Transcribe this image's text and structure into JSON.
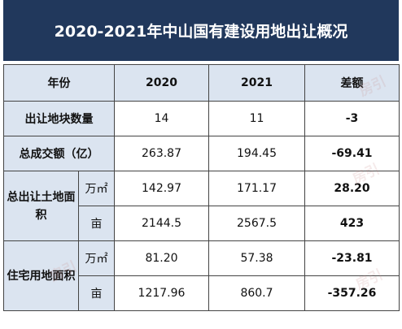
{
  "title": "2020-2021年中山国有建设用地出让概况",
  "header": {
    "label": "年份",
    "y2020": "2020",
    "y2021": "2021",
    "diff": "差额"
  },
  "rows": {
    "parcels": {
      "label": "出让地块数量",
      "v2020": "14",
      "v2021": "11",
      "diff": "-3"
    },
    "total": {
      "label": "总成交额（亿）",
      "v2020": "263.87",
      "v2021": "194.45",
      "diff": "-69.41"
    },
    "land_wan": {
      "group": "总出让土地面积",
      "unit": "万㎡",
      "v2020": "142.97",
      "v2021": "171.17",
      "diff": "28.20"
    },
    "land_mu": {
      "unit": "亩",
      "v2020": "2144.5",
      "v2021": "2567.5",
      "diff": "423"
    },
    "res_wan": {
      "group": "住宅用地面积",
      "unit": "万㎡",
      "v2020": "81.20",
      "v2021": "57.38",
      "diff": "-23.81"
    },
    "res_mu": {
      "unit": "亩",
      "v2020": "1217.96",
      "v2021": "860.7",
      "diff": "-357.26"
    }
  },
  "watermark_text": "房引",
  "colors": {
    "title_bg": "#21385c",
    "header_bg": "#dbe4f0",
    "border": "#444444"
  }
}
